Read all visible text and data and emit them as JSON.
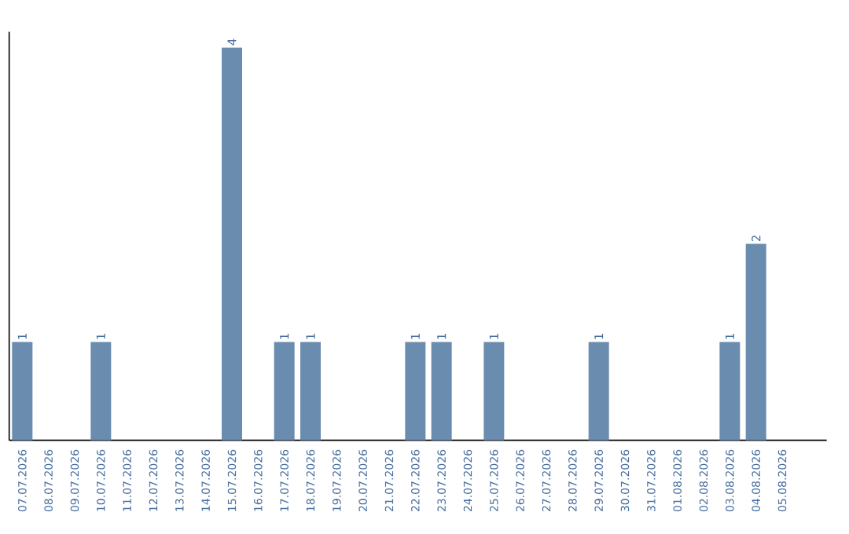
{
  "chart_data": {
    "type": "bar",
    "color": "#6a8caf",
    "tick_labels": "x",
    "grid": false,
    "categories": [
      "07.07.2026",
      "08.07.2026",
      "09.07.2026",
      "10.07.2026",
      "11.07.2026",
      "12.07.2026",
      "13.07.2026",
      "14.07.2026",
      "15.07.2026",
      "16.07.2026",
      "17.07.2026",
      "18.07.2026",
      "19.07.2026",
      "20.07.2026",
      "21.07.2026",
      "22.07.2026",
      "23.07.2026",
      "24.07.2026",
      "25.07.2026",
      "26.07.2026",
      "27.07.2026",
      "28.07.2026",
      "29.07.2026",
      "30.07.2026",
      "31.07.2026",
      "01.08.2026",
      "02.08.2026",
      "03.08.2026",
      "04.08.2026",
      "05.08.2026"
    ],
    "values": [
      1,
      0,
      0,
      1,
      0,
      0,
      0,
      0,
      4,
      0,
      1,
      1,
      0,
      0,
      0,
      1,
      1,
      0,
      1,
      0,
      0,
      0,
      1,
      0,
      0,
      0,
      0,
      1,
      2,
      0
    ],
    "value_labels": [
      "1",
      null,
      null,
      "1",
      null,
      null,
      null,
      null,
      "4",
      null,
      "1",
      "1",
      null,
      null,
      null,
      "1",
      "1",
      null,
      "1",
      null,
      null,
      null,
      "1",
      null,
      null,
      null,
      null,
      "1",
      "2",
      null
    ]
  }
}
